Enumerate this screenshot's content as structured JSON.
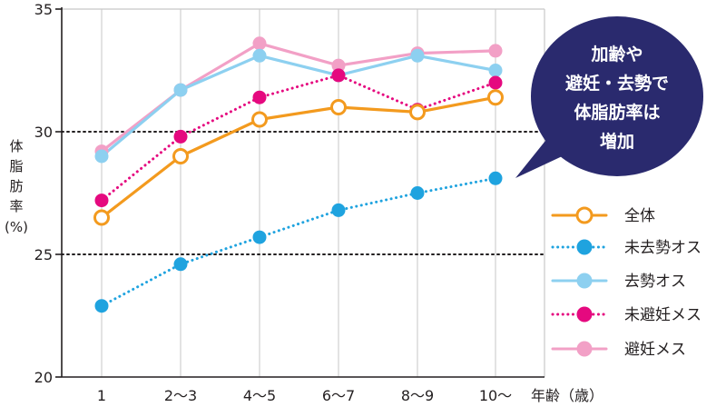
{
  "chart_data": {
    "type": "line",
    "xlabel": "年齢（歳）",
    "ylabel": [
      "体",
      "脂",
      "肪",
      "率",
      "(%)"
    ],
    "categories": [
      "1",
      "2～3",
      "4～5",
      "6～7",
      "8～9",
      "10～"
    ],
    "ylim": [
      20,
      35
    ],
    "yticks": [
      20,
      25,
      30,
      35
    ],
    "grid": {
      "vertical": true,
      "horizontal_dotted_at": [
        25,
        30
      ]
    },
    "legend_position": "right",
    "series": [
      {
        "name": "全体",
        "color": "#f39a1e",
        "style": "solid",
        "marker": "open-circle",
        "values": [
          26.5,
          29.0,
          30.5,
          31.0,
          30.8,
          31.4
        ]
      },
      {
        "name": "未去勢オス",
        "color": "#1fa3df",
        "style": "dotted",
        "marker": "filled-circle",
        "values": [
          22.9,
          24.6,
          25.7,
          26.8,
          27.5,
          28.1
        ]
      },
      {
        "name": "去勢オス",
        "color": "#8dd0f0",
        "style": "solid",
        "marker": "filled-circle",
        "values": [
          29.0,
          31.7,
          33.1,
          32.3,
          33.1,
          32.5
        ]
      },
      {
        "name": "未避妊メス",
        "color": "#e5097f",
        "style": "dotted",
        "marker": "filled-circle",
        "values": [
          27.2,
          29.8,
          31.4,
          32.3,
          30.9,
          32.0
        ]
      },
      {
        "name": "避妊メス",
        "color": "#f2a0c6",
        "style": "solid",
        "marker": "filled-circle",
        "values": [
          29.2,
          31.7,
          33.6,
          32.7,
          33.2,
          33.3
        ]
      }
    ],
    "annotation": {
      "lines": [
        "加齢や",
        "避妊・去勢で",
        "体脂肪率は",
        "増加"
      ],
      "color": "#2a2a6e"
    }
  }
}
